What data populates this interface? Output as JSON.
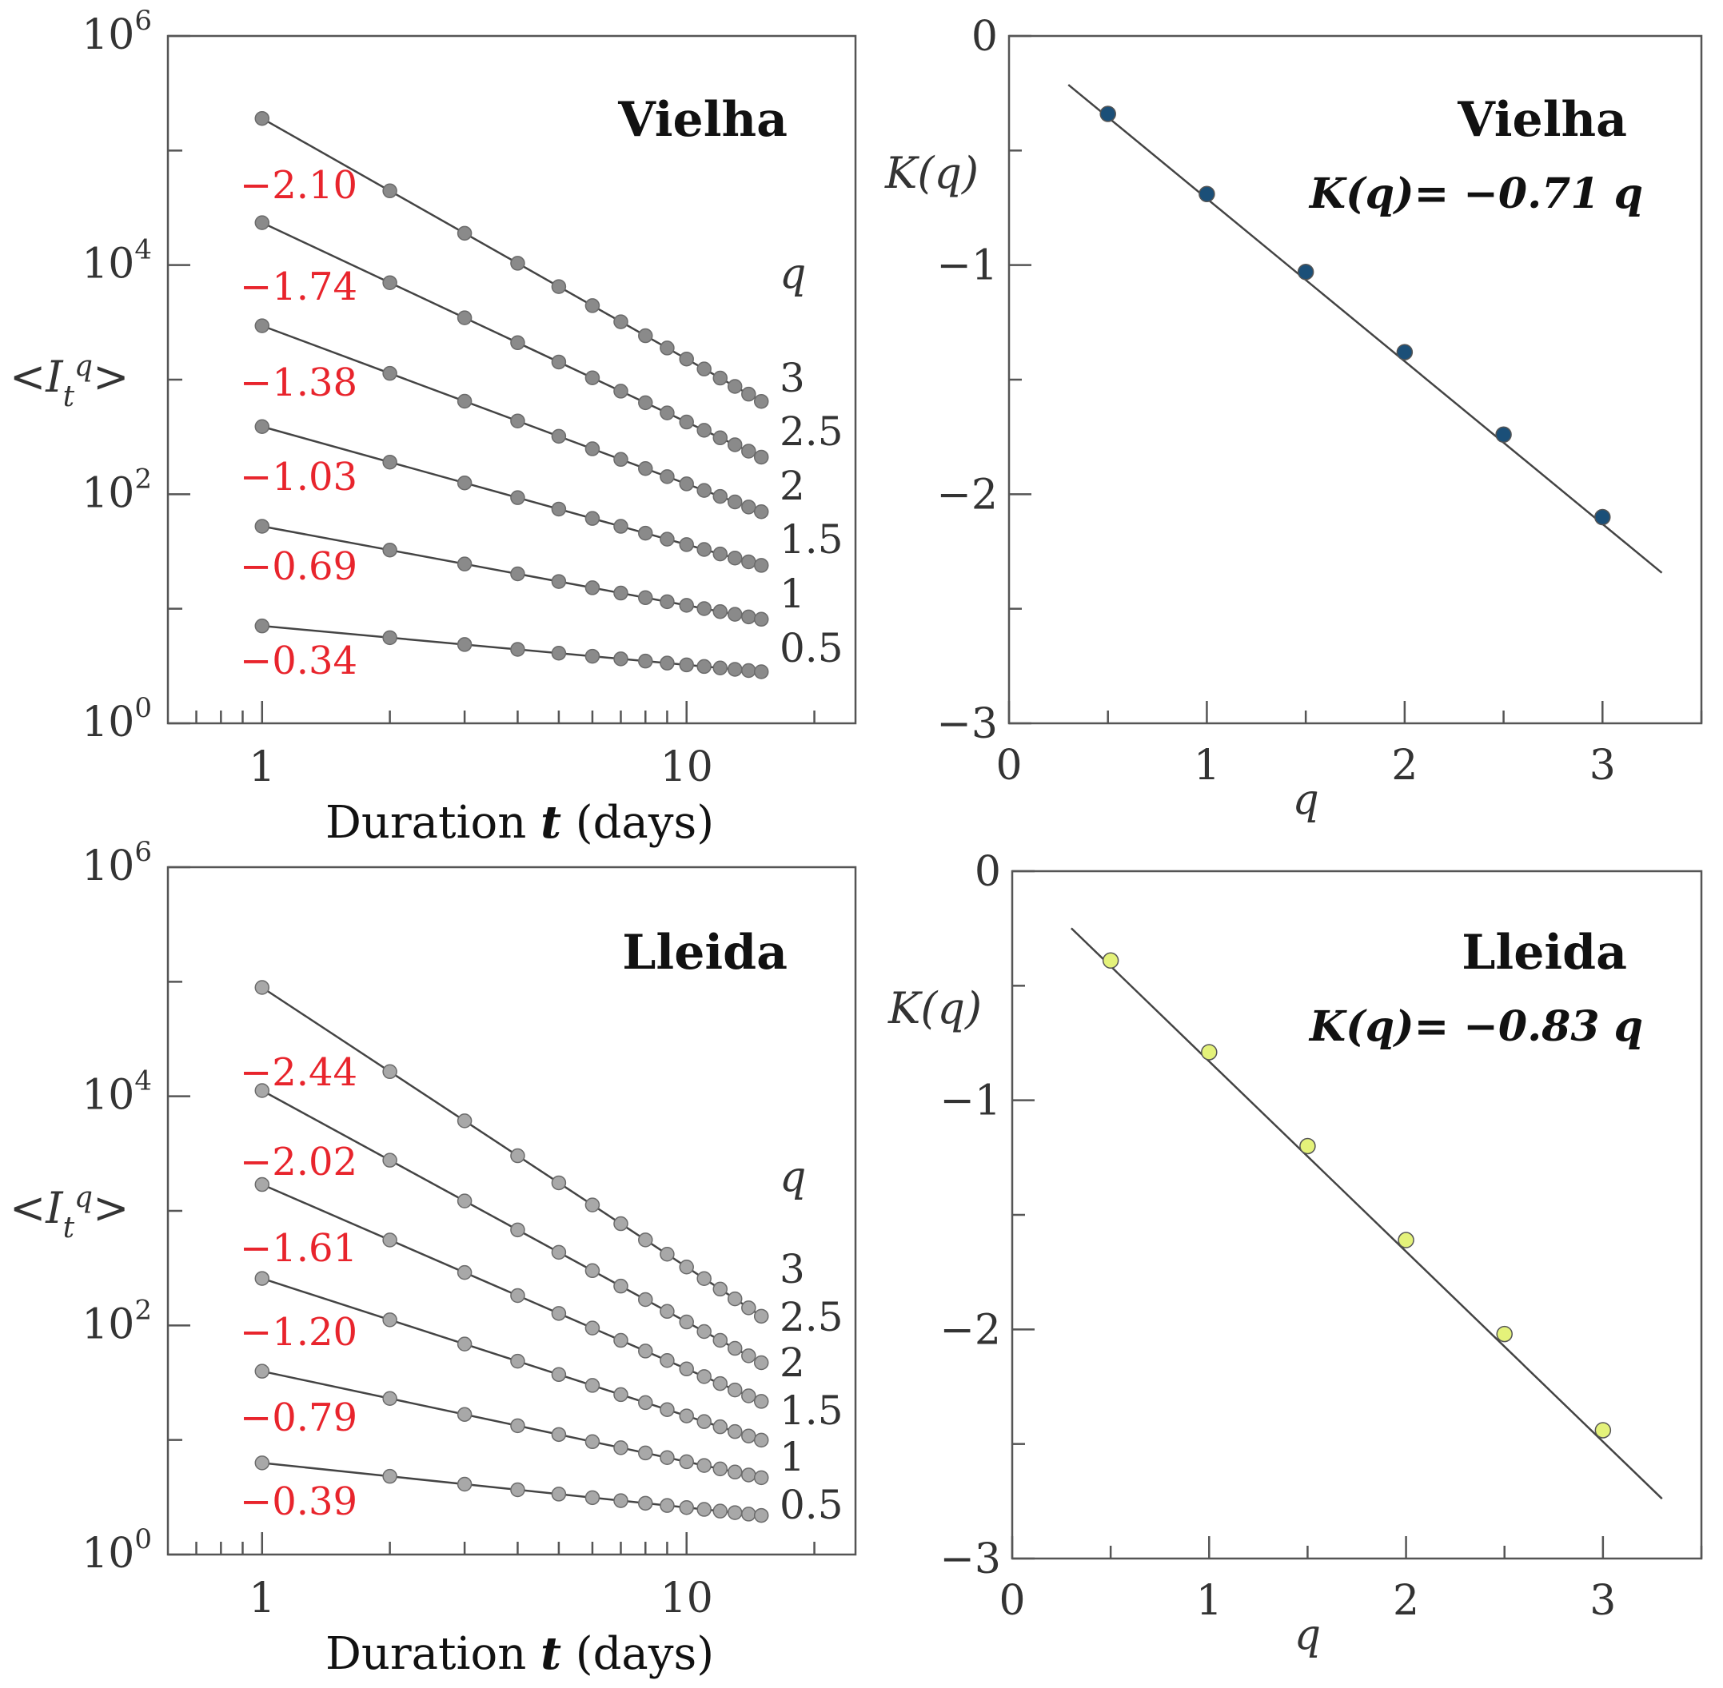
{
  "chart_data": [
    {
      "id": "vielha_moments",
      "type": "scatter",
      "scale": "log-log",
      "title": "Vielha",
      "xlabel_prefix": "Duration ",
      "xlabel_var": "t",
      "xlabel_suffix": " (days)",
      "ylabel": "<I_t^q>",
      "xlim": [
        0.6,
        25
      ],
      "ylim_log10": [
        0,
        6
      ],
      "x_ticks": [
        "1",
        "10"
      ],
      "y_ticks": [
        "0",
        "2",
        "4",
        "6"
      ],
      "y_tick_base": "10",
      "q_header": "q",
      "x": [
        1,
        2,
        3,
        4,
        5,
        6,
        7,
        8,
        9,
        10,
        11,
        12,
        13,
        14,
        15
      ],
      "series": [
        {
          "q": "3",
          "slope": "−2.10",
          "log10_at_1": 5.28,
          "k": 2.1
        },
        {
          "q": "2.5",
          "slope": "−1.74",
          "log10_at_1": 4.37,
          "k": 1.74
        },
        {
          "q": "2",
          "slope": "−1.38",
          "log10_at_1": 3.47,
          "k": 1.38
        },
        {
          "q": "1.5",
          "slope": "−1.03",
          "log10_at_1": 2.59,
          "k": 1.03
        },
        {
          "q": "1",
          "slope": "−0.69",
          "log10_at_1": 1.72,
          "k": 0.69
        },
        {
          "q": "0.5",
          "slope": "−0.34",
          "log10_at_1": 0.85,
          "k": 0.34
        }
      ],
      "marker_color": "#8a8a8a"
    },
    {
      "id": "vielha_kq",
      "type": "scatter",
      "title": "Vielha",
      "equation": "K(q)= −0.71 q",
      "xlabel": "q",
      "ylabel": "K(q)",
      "xlim": [
        0,
        3.5
      ],
      "ylim": [
        -3,
        0
      ],
      "x_ticks": [
        "0",
        "1",
        "2",
        "3"
      ],
      "y_ticks": [
        "0",
        "−1",
        "−2",
        "−3"
      ],
      "points": [
        {
          "q": 0.5,
          "K": -0.34
        },
        {
          "q": 1.0,
          "K": -0.69
        },
        {
          "q": 1.5,
          "K": -1.03
        },
        {
          "q": 2.0,
          "K": -1.38
        },
        {
          "q": 2.5,
          "K": -1.74
        },
        {
          "q": 3.0,
          "K": -2.1
        }
      ],
      "fit_slope": -0.71,
      "fit_range": [
        0.3,
        3.3
      ],
      "marker_color": "#1b4f78"
    },
    {
      "id": "lleida_moments",
      "type": "scatter",
      "scale": "log-log",
      "title": "Lleida",
      "xlabel_prefix": "Duration ",
      "xlabel_var": "t",
      "xlabel_suffix": " (days)",
      "ylabel": "<I_t^q>",
      "xlim": [
        0.6,
        25
      ],
      "ylim_log10": [
        0,
        6
      ],
      "x_ticks": [
        "1",
        "10"
      ],
      "y_ticks": [
        "0",
        "2",
        "4",
        "6"
      ],
      "y_tick_base": "10",
      "q_header": "q",
      "x": [
        1,
        2,
        3,
        4,
        5,
        6,
        7,
        8,
        9,
        10,
        11,
        12,
        13,
        14,
        15
      ],
      "series": [
        {
          "q": "3",
          "slope": "−2.44",
          "log10_at_1": 4.95,
          "k": 2.44
        },
        {
          "q": "2.5",
          "slope": "−2.02",
          "log10_at_1": 4.05,
          "k": 2.02
        },
        {
          "q": "2",
          "slope": "−1.61",
          "log10_at_1": 3.23,
          "k": 1.61
        },
        {
          "q": "1.5",
          "slope": "−1.20",
          "log10_at_1": 2.41,
          "k": 1.2
        },
        {
          "q": "1",
          "slope": "−0.79",
          "log10_at_1": 1.6,
          "k": 0.79
        },
        {
          "q": "0.5",
          "slope": "−0.39",
          "log10_at_1": 0.8,
          "k": 0.39
        }
      ],
      "marker_color": "#a8a8a8"
    },
    {
      "id": "lleida_kq",
      "type": "scatter",
      "title": "Lleida",
      "equation": "K(q)= −0.83 q",
      "xlabel": "q",
      "ylabel": "K(q)",
      "xlim": [
        0,
        3.5
      ],
      "ylim": [
        -3,
        0
      ],
      "x_ticks": [
        "0",
        "1",
        "2",
        "3"
      ],
      "y_ticks": [
        "0",
        "−1",
        "−2",
        "−3"
      ],
      "points": [
        {
          "q": 0.5,
          "K": -0.39
        },
        {
          "q": 1.0,
          "K": -0.79
        },
        {
          "q": 1.5,
          "K": -1.2
        },
        {
          "q": 2.0,
          "K": -1.61
        },
        {
          "q": 2.5,
          "K": -2.02
        },
        {
          "q": 3.0,
          "K": -2.44
        }
      ],
      "fit_slope": -0.83,
      "fit_range": [
        0.3,
        3.3
      ],
      "marker_color": "#e4f27a"
    }
  ]
}
